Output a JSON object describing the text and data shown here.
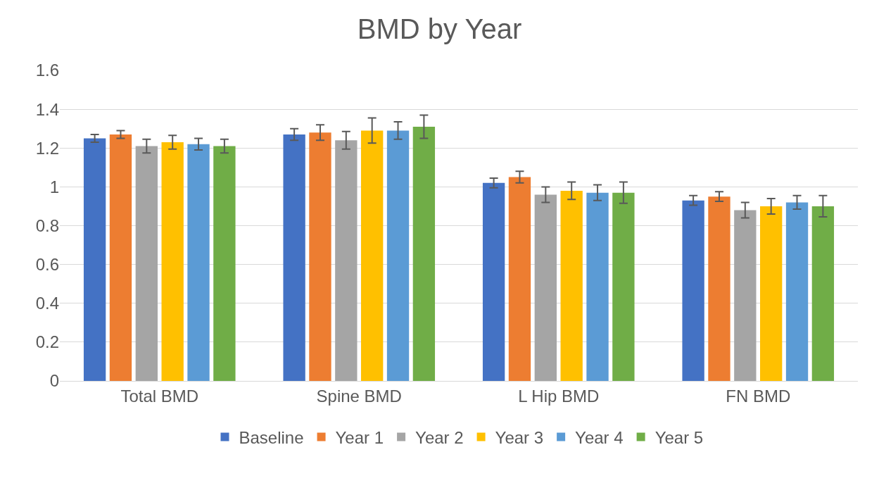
{
  "chart_data": {
    "type": "bar",
    "title": "BMD by Year",
    "categories": [
      "Total BMD",
      "Spine BMD",
      "L Hip BMD",
      "FN BMD"
    ],
    "series": [
      {
        "name": "Baseline",
        "color": "#4472c4",
        "values": [
          1.25,
          1.27,
          1.02,
          0.93
        ],
        "errors": [
          0.02,
          0.03,
          0.025,
          0.025
        ]
      },
      {
        "name": "Year 1",
        "color": "#ed7d31",
        "values": [
          1.27,
          1.28,
          1.05,
          0.95
        ],
        "errors": [
          0.02,
          0.04,
          0.03,
          0.025
        ]
      },
      {
        "name": "Year 2",
        "color": "#a5a5a5",
        "values": [
          1.21,
          1.24,
          0.96,
          0.88
        ],
        "errors": [
          0.035,
          0.045,
          0.04,
          0.04
        ]
      },
      {
        "name": "Year 3",
        "color": "#ffc000",
        "values": [
          1.23,
          1.29,
          0.98,
          0.9
        ],
        "errors": [
          0.035,
          0.065,
          0.045,
          0.04
        ]
      },
      {
        "name": "Year 4",
        "color": "#5b9bd5",
        "values": [
          1.22,
          1.29,
          0.97,
          0.92
        ],
        "errors": [
          0.03,
          0.045,
          0.04,
          0.035
        ]
      },
      {
        "name": "Year 5",
        "color": "#70ad47",
        "values": [
          1.21,
          1.31,
          0.97,
          0.9
        ],
        "errors": [
          0.035,
          0.06,
          0.055,
          0.055
        ]
      }
    ],
    "ylim": [
      0,
      1.6
    ],
    "yticks": [
      0,
      0.2,
      0.4,
      0.6,
      0.8,
      1,
      1.2,
      1.4,
      1.6
    ],
    "grid": "y",
    "legend": "bottom"
  }
}
